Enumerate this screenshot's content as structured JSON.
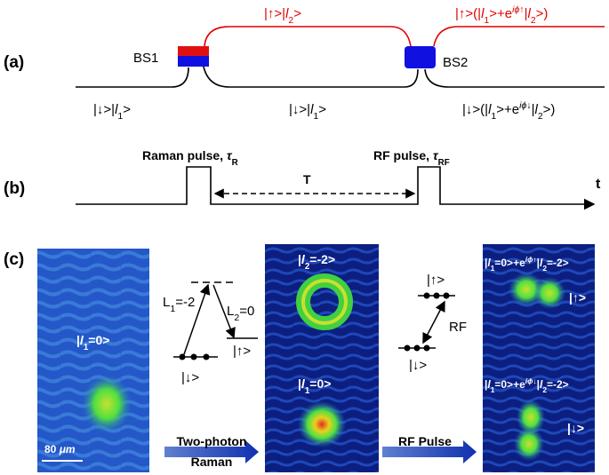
{
  "panel_a": {
    "label": "(a)",
    "bs1": "BS1",
    "bs2": "BS2",
    "upper_arm": [
      "|↑>|",
      "l",
      "2",
      ">"
    ],
    "upper_output": [
      "|↑>(|",
      "l",
      "1",
      ">+e",
      "iϕ↑",
      "|",
      "l",
      "2",
      ">)"
    ],
    "lower_input": [
      "|↓>|",
      "l",
      "1",
      ">"
    ],
    "lower_arm": [
      "|↓>|",
      "l",
      "1",
      ">"
    ],
    "lower_output": [
      "|↓>(|",
      "l",
      "1",
      ">+e",
      "iϕ↓",
      "|",
      "l",
      "2",
      ">)"
    ]
  },
  "panel_b": {
    "label": "(b)",
    "raman_pulse": [
      "Raman pulse, ",
      "τ",
      "R"
    ],
    "rf_pulse": [
      "RF pulse, ",
      "τ",
      "RF"
    ],
    "interval": "T",
    "axis": "t"
  },
  "panel_c": {
    "label": "(c)",
    "image1_state": [
      "|",
      "l",
      "1",
      "=0>"
    ],
    "scale_bar": [
      "80 ",
      "μm"
    ],
    "level1": {
      "l1": [
        "L",
        "1",
        "=-2"
      ],
      "l2": [
        "L",
        "2",
        "=0"
      ],
      "up": "|↑>",
      "down": "|↓>"
    },
    "arrow1_caption": [
      "Two-photon",
      "Raman"
    ],
    "image2_top": [
      "|",
      "l",
      "2",
      "=-2>"
    ],
    "image2_bottom": [
      "|",
      "l",
      "1",
      "=0>"
    ],
    "level2": {
      "up": "|↑>",
      "rf": "RF",
      "down": "|↓>"
    },
    "arrow2_caption": "RF Pulse",
    "image3_top": [
      "|",
      "l",
      "1",
      "=0>+e",
      "iϕ↑",
      "|",
      "l",
      "2",
      "=-2>"
    ],
    "image3_up": "|↑>",
    "image3_bottom": [
      "|",
      "l",
      "1",
      "=0>+e",
      "iϕ↓",
      "|",
      "l",
      "2",
      "=-2>"
    ],
    "image3_down": "|↓>"
  }
}
